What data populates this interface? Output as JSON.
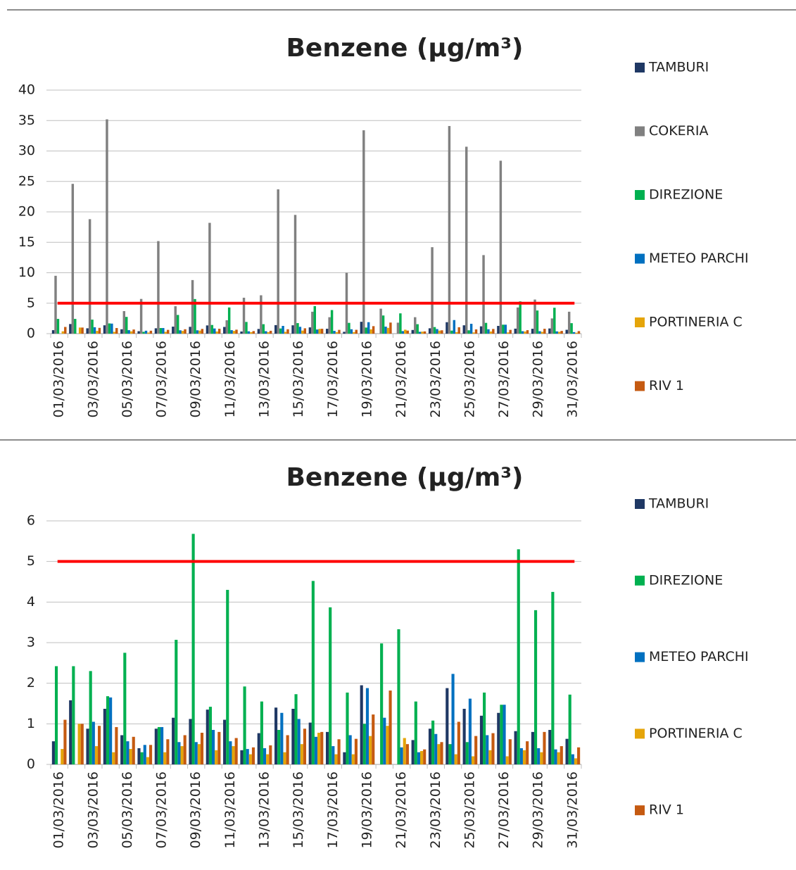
{
  "chart_data": [
    {
      "type": "bar",
      "title": "Benzene (µg/m³)",
      "categories": [
        "01/03/2016",
        null,
        "03/03/2016",
        null,
        "05/03/2016",
        null,
        "07/03/2016",
        null,
        "09/03/2016",
        null,
        "11/03/2016",
        null,
        "13/03/2016",
        null,
        "15/03/2016",
        null,
        "17/03/2016",
        null,
        "19/03/2016",
        null,
        "21/03/2016",
        null,
        "23/03/2016",
        null,
        "25/03/2016",
        null,
        "27/03/2016",
        null,
        "29/03/2016",
        null,
        "31/03/2016"
      ],
      "series": [
        {
          "name": "TAMBURI",
          "color": "#1f3864",
          "values": [
            0.57,
            1.58,
            0.88,
            1.37,
            0.72,
            0.4,
            0.88,
            1.15,
            1.12,
            1.35,
            1.1,
            0.35,
            0.77,
            1.4,
            1.37,
            1.03,
            0.8,
            0.3,
            1.95,
            null,
            null,
            0.6,
            0.88,
            1.88,
            1.37,
            1.2,
            1.27,
            0.82,
            0.8,
            0.85,
            0.63
          ]
        },
        {
          "name": "COKERIA",
          "color": "#808080",
          "values": [
            9.5,
            24.6,
            18.8,
            35.2,
            3.7,
            5.7,
            15.2,
            4.5,
            8.8,
            18.2,
            2.2,
            5.9,
            6.3,
            23.7,
            19.5,
            3.6,
            2.7,
            10,
            33.4,
            4.1,
            1.8,
            2.7,
            14.2,
            34.1,
            30.7,
            12.9,
            28.4,
            4.3,
            5.6,
            2.5,
            3.6
          ]
        },
        {
          "name": "DIREZIONE",
          "color": "#00b050",
          "values": [
            2.42,
            2.42,
            2.3,
            1.68,
            2.75,
            0.3,
            0.92,
            3.07,
            5.68,
            1.42,
            4.3,
            1.92,
            1.55,
            0.85,
            1.73,
            4.52,
            3.87,
            1.77,
            1.0,
            2.98,
            3.33,
            1.55,
            1.08,
            0.5,
            0.55,
            1.77,
            1.47,
            5.3,
            3.8,
            4.25,
            1.72
          ]
        },
        {
          "name": "METEO PARCHI",
          "color": "#0070c0",
          "values": [
            null,
            null,
            1.05,
            1.65,
            0.57,
            0.48,
            0.92,
            0.55,
            0.55,
            0.85,
            0.57,
            0.38,
            0.4,
            1.27,
            1.12,
            0.68,
            0.45,
            0.72,
            1.88,
            1.15,
            0.42,
            0.3,
            0.75,
            2.23,
            1.62,
            0.72,
            1.47,
            0.4,
            0.4,
            0.37,
            0.25
          ]
        },
        {
          "name": "PORTINERIA C",
          "color": "#e5a50a",
          "values": [
            0.38,
            1.0,
            0.45,
            0.3,
            0.38,
            0.18,
            0.3,
            0.45,
            0.5,
            0.35,
            0.45,
            0.25,
            0.25,
            0.3,
            0.5,
            0.78,
            0.25,
            0.25,
            0.7,
            0.95,
            0.65,
            0.33,
            0.5,
            0.25,
            0.2,
            0.35,
            0.2,
            0.35,
            0.3,
            0.3,
            0.15
          ]
        },
        {
          "name": "RIV 1",
          "color": "#c55a11",
          "values": [
            1.1,
            1.0,
            0.95,
            0.92,
            0.68,
            0.48,
            0.62,
            0.72,
            0.78,
            0.8,
            0.65,
            0.42,
            0.47,
            0.72,
            0.88,
            0.8,
            0.62,
            0.63,
            1.23,
            1.82,
            0.5,
            0.37,
            0.55,
            1.05,
            0.7,
            0.77,
            0.62,
            0.57,
            0.8,
            0.45,
            0.42
          ]
        }
      ],
      "ylim": [
        0,
        40
      ],
      "yticks": [
        0,
        5,
        10,
        15,
        20,
        25,
        30,
        35,
        40
      ],
      "grid": true,
      "legend": "right",
      "reference_line": {
        "value": 5,
        "color": "#ff0000"
      }
    },
    {
      "type": "bar",
      "title": "Benzene (µg/m³)",
      "categories": [
        "01/03/2016",
        null,
        "03/03/2016",
        null,
        "05/03/2016",
        null,
        "07/03/2016",
        null,
        "09/03/2016",
        null,
        "11/03/2016",
        null,
        "13/03/2016",
        null,
        "15/03/2016",
        null,
        "17/03/2016",
        null,
        "19/03/2016",
        null,
        "21/03/2016",
        null,
        "23/03/2016",
        null,
        "25/03/2016",
        null,
        "27/03/2016",
        null,
        "29/03/2016",
        null,
        "31/03/2016"
      ],
      "series": [
        {
          "name": "TAMBURI",
          "color": "#1f3864",
          "values": [
            0.57,
            1.58,
            0.88,
            1.37,
            0.72,
            0.4,
            0.88,
            1.15,
            1.12,
            1.35,
            1.1,
            0.35,
            0.77,
            1.4,
            1.37,
            1.03,
            0.8,
            0.3,
            1.95,
            null,
            null,
            0.6,
            0.88,
            1.88,
            1.37,
            1.2,
            1.27,
            0.82,
            0.8,
            0.85,
            0.63
          ]
        },
        {
          "name": "DIREZIONE",
          "color": "#00b050",
          "values": [
            2.42,
            2.42,
            2.3,
            1.68,
            2.75,
            0.3,
            0.92,
            3.07,
            5.68,
            1.42,
            4.3,
            1.92,
            1.55,
            0.85,
            1.73,
            4.52,
            3.87,
            1.77,
            1.0,
            2.98,
            3.33,
            1.55,
            1.08,
            0.5,
            0.55,
            1.77,
            1.47,
            5.3,
            3.8,
            4.25,
            1.72
          ]
        },
        {
          "name": "METEO PARCHI",
          "color": "#0070c0",
          "values": [
            null,
            null,
            1.05,
            1.65,
            0.57,
            0.48,
            0.92,
            0.55,
            0.55,
            0.85,
            0.57,
            0.38,
            0.4,
            1.27,
            1.12,
            0.68,
            0.45,
            0.72,
            1.88,
            1.15,
            0.42,
            0.3,
            0.75,
            2.23,
            1.62,
            0.72,
            1.47,
            0.4,
            0.4,
            0.37,
            0.25
          ]
        },
        {
          "name": "PORTINERIA C",
          "color": "#e5a50a",
          "values": [
            0.38,
            1.0,
            0.45,
            0.3,
            0.38,
            0.18,
            0.3,
            0.45,
            0.5,
            0.35,
            0.45,
            0.25,
            0.25,
            0.3,
            0.5,
            0.78,
            0.25,
            0.25,
            0.7,
            0.95,
            0.65,
            0.33,
            0.5,
            0.25,
            0.2,
            0.35,
            0.2,
            0.35,
            0.3,
            0.3,
            0.15
          ]
        },
        {
          "name": "RIV 1",
          "color": "#c55a11",
          "values": [
            1.1,
            1.0,
            0.95,
            0.92,
            0.68,
            0.48,
            0.62,
            0.72,
            0.78,
            0.8,
            0.65,
            0.42,
            0.47,
            0.72,
            0.88,
            0.8,
            0.62,
            0.63,
            1.23,
            1.82,
            0.5,
            0.37,
            0.55,
            1.05,
            0.7,
            0.77,
            0.62,
            0.57,
            0.8,
            0.45,
            0.42
          ]
        }
      ],
      "ylim": [
        0,
        6
      ],
      "yticks": [
        0,
        1,
        2,
        3,
        4,
        5,
        6
      ],
      "grid": true,
      "legend": "right",
      "reference_line": {
        "value": 5,
        "color": "#ff0000"
      }
    }
  ]
}
